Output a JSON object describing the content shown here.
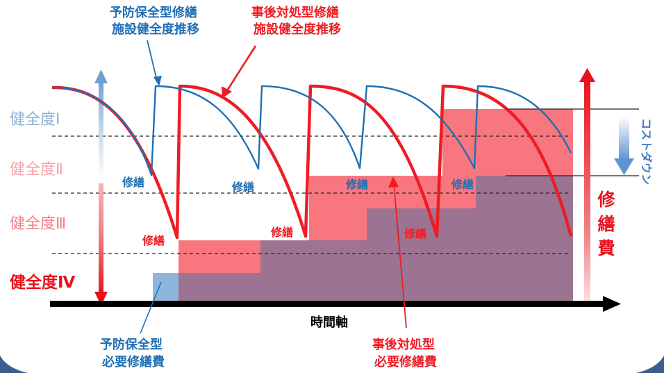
{
  "callouts": {
    "preventive_curve": [
      "予防保全型修繕",
      "施設健全度推移"
    ],
    "reactive_curve": [
      "事後対処型修繕",
      "施設健全度推移"
    ],
    "preventive_cost": [
      "予防保全型",
      "必要修繕費"
    ],
    "reactive_cost": [
      "事後対処型",
      "必要修繕費"
    ]
  },
  "health_levels": [
    {
      "label": "健全度Ⅰ"
    },
    {
      "label": "健全度Ⅱ"
    },
    {
      "label": "健全度Ⅲ"
    },
    {
      "label": "健全度Ⅳ"
    }
  ],
  "repair_label": "修繕",
  "x_axis_label": "時間軸",
  "cost_axis_label": [
    "修",
    "繕",
    "費"
  ],
  "cost_down_label": "コストダウン",
  "colors": {
    "preventive": "#1f6fb4",
    "reactive": "#ee1c25",
    "reactive_fill": "#f8767e",
    "overlap_fill": "#9c7390",
    "preventive_fill": "#8eb6dc"
  }
}
